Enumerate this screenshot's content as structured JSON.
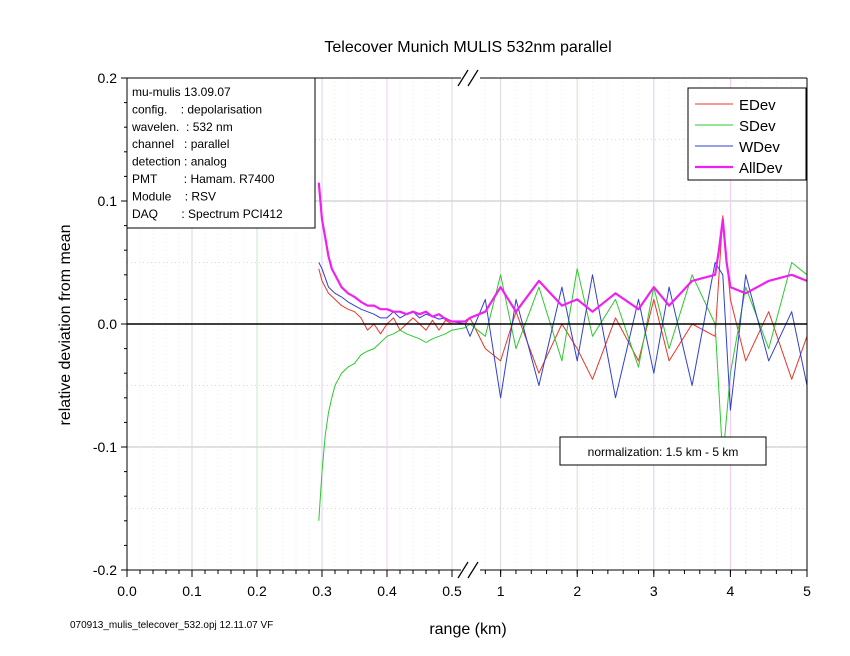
{
  "chart_data": {
    "type": "line",
    "title": "Telecover Munich MULIS 532nm parallel",
    "xlabel": "range (km)",
    "ylabel": "relative deviation from mean",
    "ylim": [
      -0.2,
      0.2
    ],
    "y_ticks": [
      "0.2",
      "0.1",
      "0.0",
      "-0.1",
      "-0.2"
    ],
    "x_axis_break": true,
    "x_segment1": {
      "range": [
        0.0,
        0.52
      ],
      "tick_labels": [
        "0.0",
        "0.1",
        "0.2",
        "0.3",
        "0.4",
        "0.5"
      ]
    },
    "x_segment2": {
      "range": [
        0.6,
        5.0
      ],
      "tick_labels": [
        "1",
        "2",
        "3",
        "4",
        "5"
      ]
    },
    "grid": true,
    "legend_position": "top-right",
    "series": [
      {
        "name": "EDev",
        "color": "#e8362a",
        "x": [
          0.295,
          0.3,
          0.31,
          0.32,
          0.33,
          0.34,
          0.35,
          0.36,
          0.37,
          0.38,
          0.39,
          0.4,
          0.41,
          0.42,
          0.43,
          0.44,
          0.45,
          0.46,
          0.47,
          0.48,
          0.49,
          0.5,
          0.52,
          0.6,
          0.8,
          1.0,
          1.2,
          1.5,
          1.8,
          2.0,
          2.2,
          2.5,
          2.8,
          3.0,
          3.2,
          3.5,
          3.8,
          3.9,
          4.0,
          4.2,
          4.5,
          4.8,
          5.0
        ],
        "y": [
          0.045,
          0.035,
          0.025,
          0.02,
          0.015,
          0.012,
          0.01,
          0.005,
          -0.005,
          0.0,
          -0.008,
          0.0,
          0.005,
          -0.005,
          0.0,
          0.005,
          0.0,
          -0.005,
          0.003,
          -0.005,
          0.003,
          0.0,
          0.0,
          0.005,
          -0.02,
          -0.03,
          0.01,
          -0.04,
          0.0,
          -0.02,
          -0.045,
          0.005,
          -0.03,
          0.02,
          -0.03,
          0.0,
          -0.01,
          0.088,
          0.02,
          -0.03,
          0.01,
          -0.045,
          -0.01
        ]
      },
      {
        "name": "SDev",
        "color": "#2ec82e",
        "x": [
          0.295,
          0.3,
          0.305,
          0.31,
          0.315,
          0.32,
          0.33,
          0.34,
          0.35,
          0.36,
          0.37,
          0.38,
          0.39,
          0.4,
          0.41,
          0.42,
          0.43,
          0.44,
          0.45,
          0.46,
          0.47,
          0.48,
          0.49,
          0.5,
          0.52,
          0.6,
          0.8,
          1.0,
          1.2,
          1.5,
          1.8,
          2.0,
          2.2,
          2.5,
          2.8,
          3.0,
          3.2,
          3.5,
          3.8,
          3.9,
          4.0,
          4.2,
          4.5,
          4.8,
          5.0
        ],
        "y": [
          -0.16,
          -0.12,
          -0.09,
          -0.072,
          -0.06,
          -0.05,
          -0.04,
          -0.035,
          -0.032,
          -0.025,
          -0.022,
          -0.02,
          -0.015,
          -0.01,
          -0.008,
          -0.005,
          -0.008,
          -0.01,
          -0.012,
          -0.015,
          -0.012,
          -0.01,
          -0.008,
          -0.005,
          -0.003,
          0.0,
          -0.01,
          0.04,
          -0.02,
          0.03,
          -0.03,
          0.045,
          -0.01,
          0.02,
          -0.035,
          0.03,
          -0.02,
          0.04,
          0.0,
          -0.11,
          -0.04,
          0.03,
          -0.02,
          0.05,
          0.04
        ]
      },
      {
        "name": "WDev",
        "color": "#3040d0",
        "x": [
          0.295,
          0.3,
          0.31,
          0.32,
          0.33,
          0.34,
          0.35,
          0.36,
          0.37,
          0.38,
          0.39,
          0.4,
          0.41,
          0.42,
          0.43,
          0.44,
          0.45,
          0.46,
          0.47,
          0.48,
          0.49,
          0.5,
          0.52,
          0.6,
          0.8,
          1.0,
          1.2,
          1.5,
          1.8,
          2.0,
          2.2,
          2.5,
          2.8,
          3.0,
          3.2,
          3.5,
          3.8,
          3.9,
          4.0,
          4.2,
          4.5,
          4.8,
          5.0
        ],
        "y": [
          0.05,
          0.045,
          0.03,
          0.025,
          0.022,
          0.018,
          0.015,
          0.012,
          0.01,
          0.008,
          0.005,
          0.005,
          0.01,
          0.005,
          0.008,
          0.01,
          0.005,
          0.008,
          0.006,
          0.004,
          0.005,
          0.002,
          0.0,
          -0.01,
          0.02,
          -0.06,
          0.02,
          -0.05,
          0.03,
          -0.03,
          0.04,
          -0.06,
          0.02,
          -0.04,
          0.03,
          -0.05,
          0.05,
          0.04,
          -0.07,
          0.04,
          -0.03,
          0.01,
          -0.05
        ]
      },
      {
        "name": "AllDev",
        "color": "#ee22ee",
        "x": [
          0.295,
          0.3,
          0.305,
          0.31,
          0.315,
          0.32,
          0.33,
          0.34,
          0.35,
          0.36,
          0.37,
          0.38,
          0.39,
          0.4,
          0.41,
          0.42,
          0.43,
          0.44,
          0.45,
          0.46,
          0.47,
          0.48,
          0.49,
          0.5,
          0.52,
          0.6,
          0.8,
          1.0,
          1.2,
          1.5,
          1.8,
          2.0,
          2.2,
          2.5,
          2.8,
          3.0,
          3.2,
          3.5,
          3.8,
          3.85,
          3.9,
          3.95,
          4.0,
          4.2,
          4.5,
          4.8,
          5.0
        ],
        "y": [
          0.115,
          0.085,
          0.07,
          0.055,
          0.045,
          0.04,
          0.03,
          0.025,
          0.022,
          0.018,
          0.015,
          0.015,
          0.012,
          0.012,
          0.01,
          0.01,
          0.008,
          0.01,
          0.008,
          0.01,
          0.006,
          0.008,
          0.004,
          0.002,
          0.002,
          0.005,
          0.01,
          0.03,
          0.01,
          0.035,
          0.015,
          0.02,
          0.01,
          0.025,
          0.012,
          0.03,
          0.015,
          0.035,
          0.04,
          0.06,
          0.085,
          0.05,
          0.03,
          0.025,
          0.035,
          0.04,
          0.035
        ]
      }
    ],
    "info_box": [
      "mu-mulis 13.09.07",
      "config.    : depolarisation",
      "wavelen.  : 532 nm",
      "channel   : parallel",
      "detection : analog",
      "PMT        : Hamam. R7400",
      "Module    : RSV",
      "DAQ       : Spectrum PCI412"
    ],
    "annotation": "normalization: 1.5 km - 5 km",
    "footer": "070913_mulis_telecover_532.opj  12.11.07 VF"
  }
}
